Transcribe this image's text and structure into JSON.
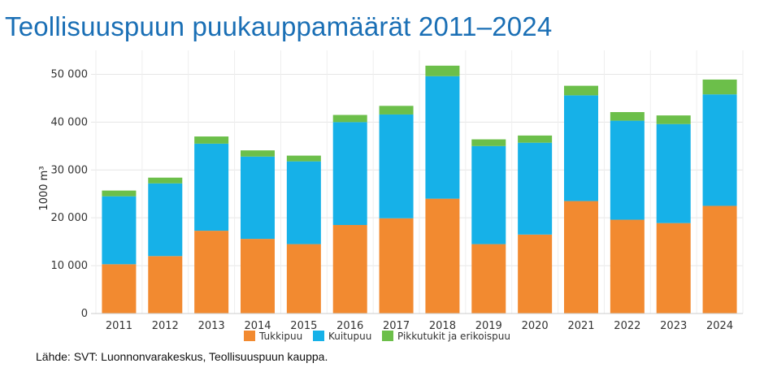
{
  "page": {
    "title": "Teollisuuspuun puukauppamäärät 2011–2024",
    "source": "Lähde: SVT: Luonnonvarakeskus, Teollisuuspuun kauppa."
  },
  "chart_data": {
    "type": "bar",
    "stacked": true,
    "title": "Teollisuuspuun puukauppamäärät 2011–2024",
    "xlabel": "",
    "ylabel": "1000 m³",
    "ylim": [
      0,
      55000
    ],
    "yticks": [
      0,
      10000,
      20000,
      30000,
      40000,
      50000
    ],
    "ytick_labels": [
      "0",
      "10 000",
      "20 000",
      "30 000",
      "40 000",
      "50 000"
    ],
    "grid": true,
    "legend_position": "bottom-center",
    "categories": [
      "2011",
      "2012",
      "2013",
      "2014",
      "2015",
      "2016",
      "2017",
      "2018",
      "2019",
      "2020",
      "2021",
      "2022",
      "2023",
      "2024"
    ],
    "series": [
      {
        "name": "Tukkipuu",
        "color": "#f28a30",
        "values": [
          10300,
          12000,
          17300,
          15600,
          14500,
          18500,
          19900,
          24000,
          14500,
          16500,
          23500,
          19600,
          18900,
          22500
        ]
      },
      {
        "name": "Kuitupuu",
        "color": "#16b1e8",
        "values": [
          14200,
          15200,
          18200,
          17200,
          17300,
          21500,
          21700,
          25600,
          20500,
          19200,
          22100,
          20700,
          20700,
          23300
        ]
      },
      {
        "name": "Pikkutukit ja erikoispuu",
        "color": "#6cbf4a",
        "values": [
          1200,
          1200,
          1500,
          1300,
          1200,
          1500,
          1800,
          2200,
          1400,
          1500,
          2000,
          1800,
          1800,
          3100
        ]
      }
    ]
  }
}
